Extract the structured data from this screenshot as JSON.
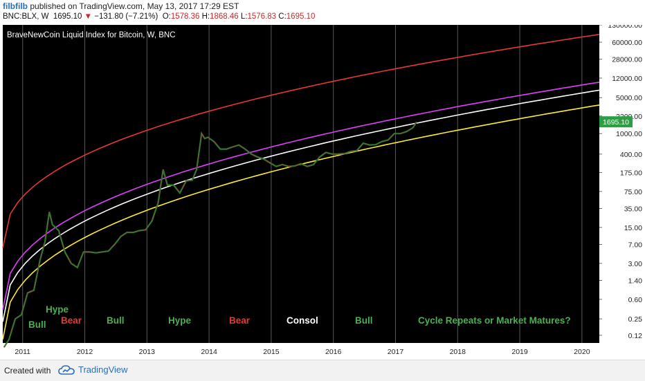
{
  "header": {
    "user": "filbfilb",
    "published": "published on TradingView.com, May 13, 2017 17:29 EST",
    "symbol": "BNC:BLX, W",
    "last": "1695.10",
    "arrow": "▼",
    "change": "−131.80 (−7.21%)",
    "o_label": "O:",
    "o_val": "1578.36",
    "h_label": "H:",
    "h_val": "1868.46",
    "l_label": "L:",
    "l_val": "1576.83",
    "c_label": "C:",
    "c_val": "1695.10"
  },
  "footer": {
    "created_with": "Created with",
    "brand": "TradingView"
  },
  "chart_data": {
    "type": "line",
    "title": "BraveNewCoin Liquid Index for Bitcoin, W, BNC",
    "y_scale": "log",
    "background": "#000000",
    "x_ticks": [
      "2011",
      "2012",
      "2013",
      "2014",
      "2015",
      "2016",
      "2017",
      "2018",
      "2019",
      "2020"
    ],
    "x_range": [
      2010.7,
      2020.3
    ],
    "y_ticks": [
      "130000.00",
      "60000.00",
      "28000.00",
      "12000.00",
      "5000.00",
      "2200.00",
      "1000.00",
      "400.00",
      "175.00",
      "75.00",
      "35.00",
      "15.00",
      "7.00",
      "3.00",
      "1.40",
      "0.60",
      "0.25",
      "0.12"
    ],
    "last_price_label": "1695.10",
    "last_price": 1695.1,
    "price_series": {
      "x": [
        2010.72,
        2010.8,
        2010.9,
        2011.0,
        2011.1,
        2011.2,
        2011.3,
        2011.38,
        2011.45,
        2011.5,
        2011.6,
        2011.7,
        2011.8,
        2011.9,
        2012.0,
        2012.1,
        2012.2,
        2012.3,
        2012.4,
        2012.5,
        2012.6,
        2012.7,
        2012.8,
        2012.9,
        2013.0,
        2013.1,
        2013.2,
        2013.28,
        2013.35,
        2013.45,
        2013.55,
        2013.65,
        2013.75,
        2013.82,
        2013.9,
        2013.95,
        2014.0,
        2014.1,
        2014.2,
        2014.3,
        2014.4,
        2014.5,
        2014.6,
        2014.7,
        2014.8,
        2014.9,
        2015.0,
        2015.1,
        2015.2,
        2015.3,
        2015.4,
        2015.5,
        2015.6,
        2015.7,
        2015.8,
        2015.9,
        2016.0,
        2016.1,
        2016.2,
        2016.3,
        2016.4,
        2016.5,
        2016.6,
        2016.7,
        2016.8,
        2016.9,
        2017.0,
        2017.1,
        2017.2,
        2017.3,
        2017.36
      ],
      "y": [
        0.07,
        0.1,
        0.25,
        0.3,
        0.8,
        0.9,
        3.5,
        8,
        30,
        17,
        13,
        5,
        3,
        2.5,
        5,
        5,
        4.8,
        5,
        5.2,
        7,
        10,
        12,
        12,
        13,
        13.5,
        20,
        45,
        200,
        100,
        100,
        70,
        120,
        125,
        200,
        1000,
        800,
        850,
        700,
        500,
        500,
        550,
        600,
        500,
        400,
        350,
        320,
        270,
        230,
        250,
        230,
        235,
        260,
        230,
        250,
        350,
        430,
        400,
        400,
        410,
        450,
        470,
        650,
        600,
        610,
        700,
        750,
        1000,
        1000,
        1100,
        1300,
        1695.1
      ]
    },
    "curves": [
      {
        "color": "#e53935",
        "x": [
          2010.7,
          2020.3
        ],
        "y": [
          6,
          85000
        ]
      },
      {
        "color": "#e040fb",
        "x": [
          2010.7,
          2020.3
        ],
        "y": [
          0.38,
          10000
        ]
      },
      {
        "color": "#ffffff",
        "x": [
          2010.7,
          2020.3
        ],
        "y": [
          0.22,
          7000
        ]
      },
      {
        "color": "#ffeb3b",
        "x": [
          2010.7,
          2020.3
        ],
        "y": [
          0.1,
          3600
        ]
      }
    ],
    "annotations": [
      {
        "text": "Bull",
        "color": "#4caf50"
      },
      {
        "text": "Hype",
        "color": "#4caf50"
      },
      {
        "text": "Bear",
        "color": "#e53935"
      },
      {
        "text": "Bull",
        "color": "#4caf50"
      },
      {
        "text": "Hype",
        "color": "#4caf50"
      },
      {
        "text": "Bear",
        "color": "#e53935"
      },
      {
        "text": "Consol",
        "color": "#ffffff"
      },
      {
        "text": "Bull",
        "color": "#4caf50"
      },
      {
        "text": "Cycle Repeats or Market Matures?",
        "color": "#4caf50"
      }
    ],
    "grid": "vertical"
  }
}
